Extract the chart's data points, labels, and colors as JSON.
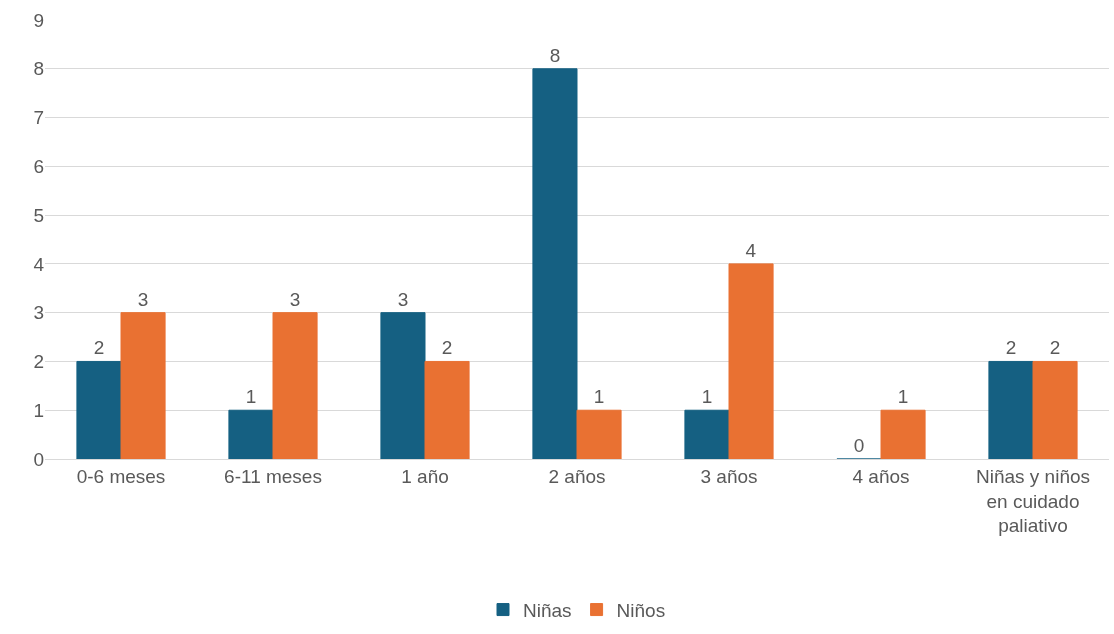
{
  "chart_data": {
    "type": "bar",
    "categories": [
      "0-6 meses",
      "6-11 meses",
      "1 año",
      "2 años",
      "3 años",
      "4 años",
      "Niñas y niños en cuidado paliativo"
    ],
    "series": [
      {
        "name": "Niñas",
        "color": "#156082",
        "values": [
          2,
          1,
          3,
          8,
          1,
          0,
          2
        ]
      },
      {
        "name": "Niños",
        "color": "#e97132",
        "values": [
          3,
          3,
          2,
          1,
          4,
          1,
          2
        ]
      }
    ],
    "ylim": [
      0,
      9
    ],
    "yticks": [
      0,
      1,
      2,
      3,
      4,
      5,
      6,
      7,
      8,
      9
    ],
    "grid": "y",
    "legend": "bottom",
    "data_labels": true
  }
}
